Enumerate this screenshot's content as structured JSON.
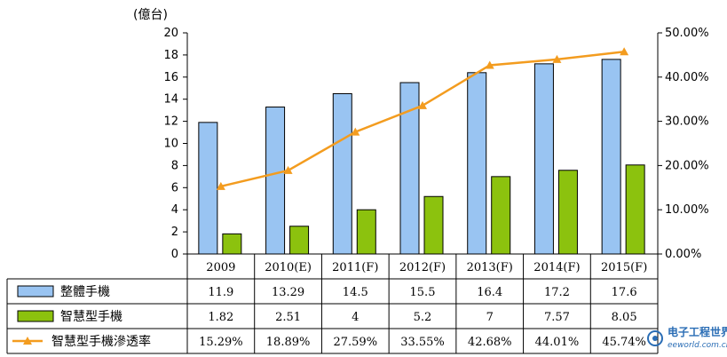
{
  "chart_data": {
    "type": "bar",
    "unit_label": "(億台)",
    "categories": [
      "2009",
      "2010(E)",
      "2011(F)",
      "2012(F)",
      "2013(F)",
      "2014(F)",
      "2015(F)"
    ],
    "ylim": [
      0,
      20
    ],
    "y_ticks": [
      "20",
      "18",
      "16",
      "14",
      "12",
      "10",
      "8",
      "6",
      "4",
      "2",
      "0"
    ],
    "y2lim": [
      0,
      50
    ],
    "y2_ticks": [
      "50.00%",
      "40.00%",
      "30.00%",
      "20.00%",
      "10.00%",
      "0.00%"
    ],
    "series": [
      {
        "name": "整體手機",
        "kind": "bar",
        "color": "#99c4f2",
        "values": [
          11.9,
          13.29,
          14.5,
          15.5,
          16.4,
          17.2,
          17.6
        ],
        "labels": [
          "11.9",
          "13.29",
          "14.5",
          "15.5",
          "16.4",
          "17.2",
          "17.6"
        ]
      },
      {
        "name": "智慧型手機",
        "kind": "bar",
        "color": "#8cc20e",
        "values": [
          1.82,
          2.51,
          4,
          5.2,
          7,
          7.57,
          8.05
        ],
        "labels": [
          "1.82",
          "2.51",
          "4",
          "5.2",
          "7",
          "7.57",
          "8.05"
        ]
      },
      {
        "name": "智慧型手機滲透率",
        "kind": "line",
        "axis": "right",
        "color": "#f39c1f",
        "values": [
          15.29,
          18.89,
          27.59,
          33.55,
          42.68,
          44.01,
          45.74
        ],
        "labels": [
          "15.29%",
          "18.89%",
          "27.59%",
          "33.55%",
          "42.68%",
          "44.01%",
          "45.74%"
        ]
      }
    ],
    "grid": false,
    "legend": "data-table"
  },
  "watermark": {
    "main": "电子工程世界",
    "sub": "eeworld.com.cn"
  }
}
